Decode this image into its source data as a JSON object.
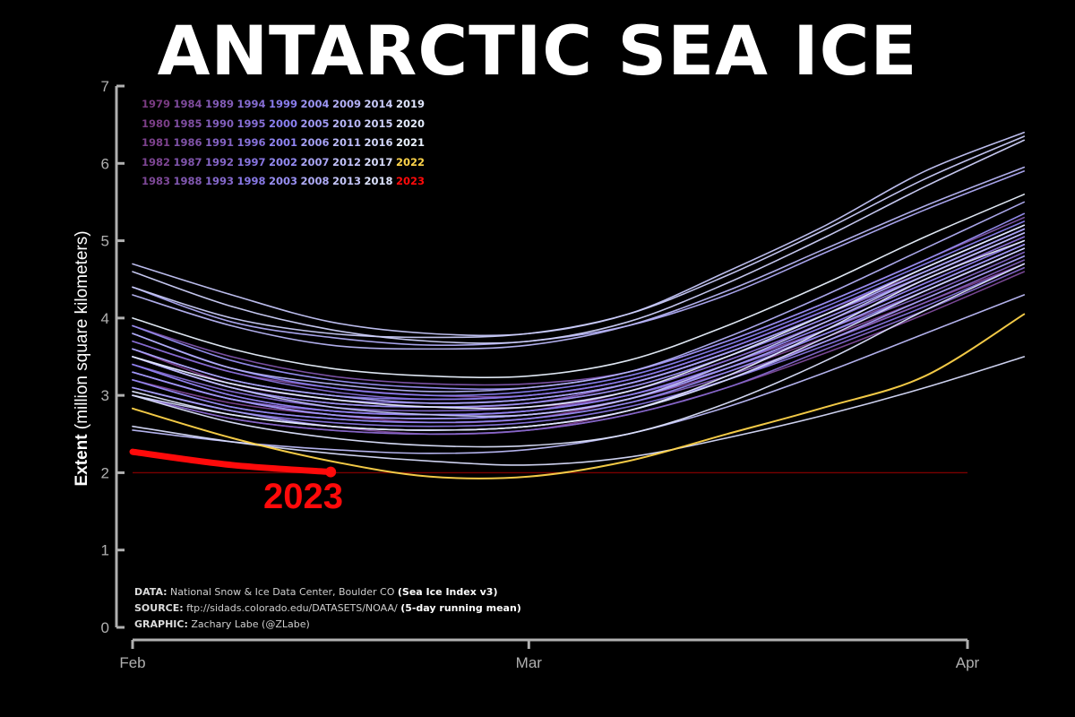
{
  "chart_data": {
    "type": "line",
    "title": "ANTARCTIC SEA ICE",
    "ylabel_bold": "Extent",
    "ylabel_rest": "(million square kilometers)",
    "ylim": [
      0,
      7
    ],
    "yticks": [
      "0",
      "1",
      "2",
      "3",
      "4",
      "5",
      "6",
      "7"
    ],
    "xticks": [
      "Feb",
      "Mar",
      "Apr"
    ],
    "x_days": [
      0,
      7,
      14,
      21,
      28,
      35,
      42,
      49,
      56,
      63
    ],
    "reference_line_value": 2.0,
    "series": [
      {
        "name": "1979",
        "values": [
          3.3,
          2.95,
          2.75,
          2.65,
          2.7,
          2.95,
          3.35,
          3.85,
          4.4,
          4.95
        ]
      },
      {
        "name": "1980",
        "values": [
          3.6,
          3.15,
          2.95,
          2.85,
          2.85,
          3.0,
          3.4,
          3.9,
          4.45,
          5.0
        ]
      },
      {
        "name": "1981",
        "values": [
          3.0,
          2.7,
          2.55,
          2.5,
          2.55,
          2.8,
          3.2,
          3.7,
          4.2,
          4.7
        ]
      },
      {
        "name": "1982",
        "values": [
          3.2,
          2.9,
          2.75,
          2.7,
          2.75,
          2.95,
          3.3,
          3.75,
          4.25,
          4.8
        ]
      },
      {
        "name": "1983",
        "values": [
          3.5,
          3.1,
          2.9,
          2.85,
          2.9,
          3.1,
          3.5,
          4.0,
          4.55,
          5.1
        ]
      },
      {
        "name": "1984",
        "values": [
          3.1,
          2.8,
          2.6,
          2.5,
          2.55,
          2.75,
          3.1,
          3.55,
          4.05,
          4.6
        ]
      },
      {
        "name": "1985",
        "values": [
          3.7,
          3.3,
          3.1,
          3.0,
          3.0,
          3.2,
          3.6,
          4.1,
          4.6,
          5.15
        ]
      },
      {
        "name": "1986",
        "values": [
          3.4,
          3.0,
          2.8,
          2.75,
          2.8,
          3.0,
          3.4,
          3.85,
          4.35,
          4.9
        ]
      },
      {
        "name": "1987",
        "values": [
          3.9,
          3.5,
          3.25,
          3.15,
          3.15,
          3.3,
          3.7,
          4.2,
          4.75,
          5.3
        ]
      },
      {
        "name": "1988",
        "values": [
          3.3,
          2.95,
          2.8,
          2.75,
          2.8,
          3.05,
          3.45,
          3.95,
          4.5,
          5.05
        ]
      },
      {
        "name": "1989",
        "values": [
          3.5,
          3.1,
          2.9,
          2.85,
          2.9,
          3.15,
          3.55,
          4.05,
          4.55,
          5.1
        ]
      },
      {
        "name": "1990",
        "values": [
          3.2,
          2.85,
          2.7,
          2.65,
          2.7,
          2.9,
          3.25,
          3.7,
          4.2,
          4.75
        ]
      },
      {
        "name": "1991",
        "values": [
          3.6,
          3.2,
          3.0,
          2.9,
          2.95,
          3.15,
          3.55,
          4.05,
          4.6,
          5.15
        ]
      },
      {
        "name": "1992",
        "values": [
          3.3,
          2.95,
          2.8,
          2.75,
          2.8,
          3.0,
          3.35,
          3.8,
          4.3,
          4.85
        ]
      },
      {
        "name": "1993",
        "values": [
          3.0,
          2.7,
          2.55,
          2.5,
          2.55,
          2.75,
          3.1,
          3.6,
          4.1,
          4.65
        ]
      },
      {
        "name": "1994",
        "values": [
          3.4,
          3.05,
          2.85,
          2.8,
          2.85,
          3.05,
          3.45,
          3.95,
          4.5,
          5.05
        ]
      },
      {
        "name": "1995",
        "values": [
          3.7,
          3.3,
          3.05,
          2.95,
          3.0,
          3.2,
          3.6,
          4.1,
          4.65,
          5.2
        ]
      },
      {
        "name": "1996",
        "values": [
          3.5,
          3.15,
          2.95,
          2.9,
          2.95,
          3.15,
          3.55,
          4.05,
          4.6,
          5.15
        ]
      },
      {
        "name": "1997",
        "values": [
          3.1,
          2.8,
          2.65,
          2.6,
          2.65,
          2.85,
          3.2,
          3.65,
          4.15,
          4.7
        ]
      },
      {
        "name": "1998",
        "values": [
          3.6,
          3.2,
          3.0,
          2.95,
          3.0,
          3.2,
          3.6,
          4.1,
          4.65,
          5.2
        ]
      },
      {
        "name": "1999",
        "values": [
          3.3,
          2.95,
          2.75,
          2.7,
          2.75,
          2.95,
          3.35,
          3.85,
          4.4,
          4.95
        ]
      },
      {
        "name": "2000",
        "values": [
          3.8,
          3.35,
          3.1,
          3.0,
          3.05,
          3.25,
          3.65,
          4.15,
          4.7,
          5.25
        ]
      },
      {
        "name": "2001",
        "values": [
          3.4,
          3.0,
          2.8,
          2.75,
          2.8,
          3.0,
          3.4,
          3.9,
          4.45,
          5.0
        ]
      },
      {
        "name": "2002",
        "values": [
          3.2,
          2.85,
          2.7,
          2.65,
          2.7,
          2.9,
          3.3,
          3.8,
          4.35,
          4.9
        ]
      },
      {
        "name": "2003",
        "values": [
          3.9,
          3.45,
          3.2,
          3.1,
          3.1,
          3.3,
          3.7,
          4.2,
          4.75,
          5.35
        ]
      },
      {
        "name": "2004",
        "values": [
          3.5,
          3.1,
          2.9,
          2.85,
          2.9,
          3.1,
          3.5,
          4.0,
          4.55,
          5.1
        ]
      },
      {
        "name": "2005",
        "values": [
          3.3,
          2.95,
          2.75,
          2.7,
          2.75,
          2.95,
          3.35,
          3.85,
          4.4,
          4.95
        ]
      },
      {
        "name": "2006",
        "values": [
          3.1,
          2.8,
          2.6,
          2.55,
          2.6,
          2.8,
          3.2,
          3.7,
          4.25,
          4.8
        ]
      },
      {
        "name": "2007",
        "values": [
          3.6,
          3.2,
          3.0,
          2.9,
          2.95,
          3.15,
          3.55,
          4.05,
          4.6,
          5.15
        ]
      },
      {
        "name": "2008",
        "values": [
          4.4,
          3.95,
          3.75,
          3.65,
          3.7,
          3.9,
          4.3,
          4.85,
          5.4,
          5.9
        ]
      },
      {
        "name": "2009",
        "values": [
          3.8,
          3.35,
          3.15,
          3.05,
          3.1,
          3.3,
          3.75,
          4.3,
          4.9,
          5.5
        ]
      },
      {
        "name": "2010",
        "values": [
          4.3,
          3.9,
          3.65,
          3.6,
          3.65,
          3.9,
          4.35,
          4.9,
          5.45,
          5.95
        ]
      },
      {
        "name": "2011",
        "values": [
          2.55,
          2.4,
          2.3,
          2.25,
          2.3,
          2.5,
          2.85,
          3.3,
          3.8,
          4.3
        ]
      },
      {
        "name": "2012",
        "values": [
          3.5,
          3.1,
          2.85,
          2.75,
          2.75,
          2.95,
          3.4,
          3.95,
          4.55,
          5.1
        ]
      },
      {
        "name": "2013",
        "values": [
          4.7,
          4.3,
          3.95,
          3.8,
          3.8,
          4.05,
          4.6,
          5.2,
          5.9,
          6.4
        ]
      },
      {
        "name": "2014",
        "values": [
          4.4,
          4.0,
          3.8,
          3.75,
          3.8,
          4.05,
          4.55,
          5.15,
          5.8,
          6.35
        ]
      },
      {
        "name": "2015",
        "values": [
          4.6,
          4.15,
          3.85,
          3.7,
          3.7,
          3.95,
          4.45,
          5.05,
          5.7,
          6.3
        ]
      },
      {
        "name": "2016",
        "values": [
          3.0,
          2.75,
          2.6,
          2.55,
          2.6,
          2.8,
          3.2,
          3.75,
          4.35,
          4.9
        ]
      },
      {
        "name": "2017",
        "values": [
          2.6,
          2.4,
          2.25,
          2.15,
          2.1,
          2.2,
          2.45,
          2.75,
          3.1,
          3.5
        ]
      },
      {
        "name": "2018",
        "values": [
          3.0,
          2.65,
          2.45,
          2.35,
          2.35,
          2.5,
          2.9,
          3.45,
          4.1,
          4.7
        ]
      },
      {
        "name": "2019",
        "values": [
          3.05,
          2.75,
          2.6,
          2.55,
          2.6,
          2.8,
          3.25,
          3.85,
          4.5,
          5.0
        ]
      },
      {
        "name": "2020",
        "values": [
          3.5,
          3.15,
          2.95,
          2.85,
          2.85,
          3.05,
          3.5,
          4.05,
          4.65,
          5.2
        ]
      },
      {
        "name": "2021",
        "values": [
          4.0,
          3.6,
          3.35,
          3.25,
          3.25,
          3.45,
          3.9,
          4.45,
          5.05,
          5.6
        ]
      },
      {
        "name": "2022",
        "values": [
          2.83,
          2.45,
          2.15,
          1.95,
          1.95,
          2.15,
          2.5,
          2.85,
          3.25,
          4.05
        ]
      },
      {
        "name": "2023",
        "values": [
          2.27,
          2.1,
          2.01
        ]
      }
    ]
  },
  "legend": {
    "rows": [
      [
        "1979",
        "1984",
        "1989",
        "1994",
        "1999",
        "2004",
        "2009",
        "2014",
        "2019"
      ],
      [
        "1980",
        "1985",
        "1990",
        "1995",
        "2000",
        "2005",
        "2010",
        "2015",
        "2020"
      ],
      [
        "1981",
        "1986",
        "1991",
        "1996",
        "2001",
        "2006",
        "2011",
        "2016",
        "2021"
      ],
      [
        "1982",
        "1987",
        "1992",
        "1997",
        "2002",
        "2007",
        "2012",
        "2017",
        "2022"
      ],
      [
        "1983",
        "1988",
        "1993",
        "1998",
        "2003",
        "2008",
        "2013",
        "2018",
        "2023"
      ]
    ]
  },
  "annotation_2023": "2023",
  "colors": {
    "highlight_2022": "#ffd44a",
    "highlight_2023": "#ff0a0a",
    "reference_line": "#7a0000",
    "axis": "#b0b0b0",
    "gradient_start": "#7a3b82",
    "gradient_mid": "#8a7ff0",
    "gradient_end": "#eaf2ff"
  },
  "credits": {
    "data_label": "DATA:",
    "data_text": " National Snow & Ice Data Center, Boulder CO ",
    "data_strong": "(Sea Ice Index v3)",
    "source_label": "SOURCE:",
    "source_text": " ftp://sidads.colorado.edu/DATASETS/NOAA/ ",
    "source_strong": "(5-day running mean)",
    "graphic_label": "GRAPHIC:",
    "graphic_text": " Zachary Labe (@ZLabe)"
  }
}
